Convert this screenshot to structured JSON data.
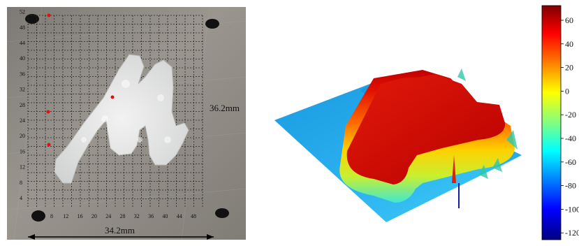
{
  "photo": {
    "y_ticks": [
      "4",
      "8",
      "12",
      "16",
      "20",
      "24",
      "28",
      "32",
      "36",
      "40",
      "44",
      "48",
      "52"
    ],
    "x_ticks": [
      "8",
      "12",
      "16",
      "20",
      "24",
      "28",
      "32",
      "36",
      "40",
      "44",
      "48"
    ],
    "height_label": "36.2mm",
    "width_label": "34.2mm"
  },
  "colorbar": {
    "ticks": [
      "60",
      "40",
      "20",
      "0",
      "-20",
      "-40",
      "-60",
      "-80",
      "-100",
      "-120"
    ]
  },
  "colors": {
    "plate": "#8f8b85",
    "grid": "#2a2a2a",
    "deposit": "#dcdcdc",
    "marker": "#e01010"
  }
}
